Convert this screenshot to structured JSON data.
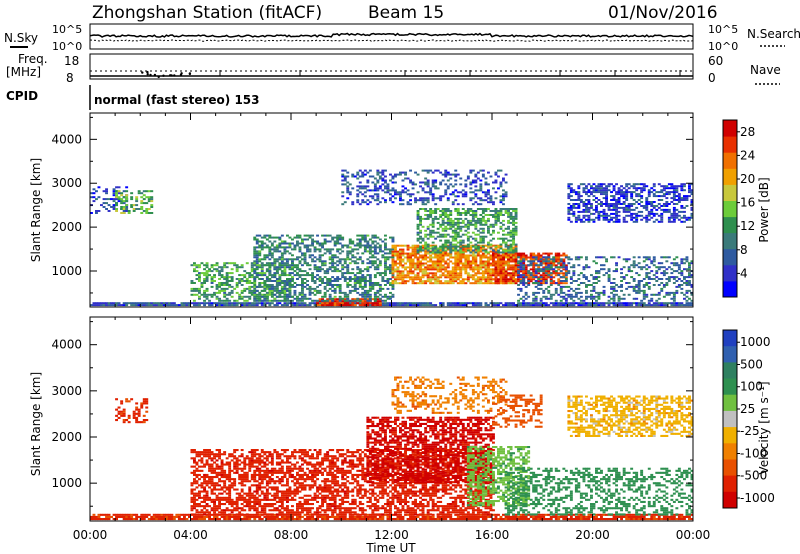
{
  "header": {
    "station": "Zhongshan Station (fitACF)",
    "beam": "Beam 15",
    "date": "01/Nov/2016"
  },
  "aux_panels": {
    "nsky_label": "N.Sky",
    "nsky_ticks": [
      "10^5",
      "10^0"
    ],
    "nsearch_label": "N.Search",
    "nsearch_ticks": [
      "10^5",
      "10^0"
    ],
    "freq_label": "Freq.",
    "freq_unit": "[MHz]",
    "freq_ticks": [
      "18",
      "8"
    ],
    "nave_label": "Nave",
    "nave_ticks": [
      "60",
      "0"
    ],
    "cpid_label": "CPID",
    "cpid_text": "normal (fast stereo) 153"
  },
  "colors": {
    "power": [
      "#0000ff",
      "#3030c8",
      "#2e5aa0",
      "#3a7a7a",
      "#2e8f4e",
      "#6ccc3a",
      "#c8c83c",
      "#f0a000",
      "#f07000",
      "#e83000",
      "#d00000"
    ],
    "velocity": [
      "#2040c0",
      "#3060b0",
      "#2e8060",
      "#2e9050",
      "#70c040",
      "#c0c0c0",
      "#f0b000",
      "#f08000",
      "#e85000",
      "#e02000",
      "#d00000"
    ]
  },
  "chart_data": [
    {
      "type": "heatmap",
      "name": "power-panel",
      "xlabel": "",
      "ylabel": "Slant Range [km]",
      "x_ticks": [
        "00:00",
        "04:00",
        "08:00",
        "12:00",
        "16:00",
        "20:00",
        "00:00"
      ],
      "xlim_hours": [
        0,
        24
      ],
      "y_ticks": [
        1000,
        2000,
        3000,
        4000
      ],
      "ylim": [
        180,
        4600
      ],
      "colorbar_label": "Power [dB]",
      "colorbar_ticks": [
        4,
        8,
        12,
        16,
        20,
        24,
        28
      ],
      "colorbar_range": [
        0,
        30
      ],
      "regions": [
        {
          "t0": 0.0,
          "t1": 1.5,
          "r0": 2300,
          "r1": 2900,
          "v": 5,
          "d": 0.35
        },
        {
          "t0": 0.0,
          "t1": 24.0,
          "r0": 200,
          "r1": 280,
          "v": 6,
          "d": 0.9
        },
        {
          "t0": 9.0,
          "t1": 11.5,
          "r0": 200,
          "r1": 350,
          "v": 27,
          "d": 0.9
        },
        {
          "t0": 4.0,
          "t1": 8.0,
          "r0": 300,
          "r1": 1200,
          "v": 12,
          "d": 0.45
        },
        {
          "t0": 6.5,
          "t1": 12.0,
          "r0": 300,
          "r1": 1800,
          "v": 10,
          "d": 0.5
        },
        {
          "t0": 12.0,
          "t1": 17.0,
          "r0": 700,
          "r1": 1600,
          "v": 22,
          "d": 0.75
        },
        {
          "t0": 13.0,
          "t1": 17.0,
          "r0": 1400,
          "r1": 2400,
          "v": 12,
          "d": 0.55
        },
        {
          "t0": 16.0,
          "t1": 19.0,
          "r0": 700,
          "r1": 1400,
          "v": 26,
          "d": 0.7
        },
        {
          "t0": 10.0,
          "t1": 16.5,
          "r0": 2500,
          "r1": 3300,
          "v": 6,
          "d": 0.35
        },
        {
          "t0": 19.0,
          "t1": 24.0,
          "r0": 2100,
          "r1": 3000,
          "v": 5,
          "d": 0.55
        },
        {
          "t0": 17.0,
          "t1": 24.0,
          "r0": 300,
          "r1": 1300,
          "v": 8,
          "d": 0.35
        },
        {
          "t0": 1.0,
          "t1": 2.5,
          "r0": 2300,
          "r1": 2800,
          "v": 14,
          "d": 0.4
        }
      ]
    },
    {
      "type": "heatmap",
      "name": "velocity-panel",
      "xlabel": "Time UT",
      "ylabel": "Slant Range [km]",
      "x_ticks": [
        "00:00",
        "04:00",
        "08:00",
        "12:00",
        "16:00",
        "20:00",
        "00:00"
      ],
      "xlim_hours": [
        0,
        24
      ],
      "y_ticks": [
        1000,
        2000,
        3000,
        4000
      ],
      "ylim": [
        180,
        4600
      ],
      "colorbar_label": "Velocity [m s⁻¹]",
      "colorbar_ticks": [
        "1000",
        "500",
        "100",
        "25",
        "-25",
        "-100",
        "-500",
        "-1000"
      ],
      "regions": [
        {
          "t0": 0.0,
          "t1": 24.0,
          "r0": 200,
          "r1": 300,
          "v": -300,
          "d": 0.85
        },
        {
          "t0": 4.0,
          "t1": 16.0,
          "r0": 300,
          "r1": 1700,
          "v": -400,
          "d": 0.6
        },
        {
          "t0": 11.0,
          "t1": 16.0,
          "r0": 1000,
          "r1": 2400,
          "v": -600,
          "d": 0.65
        },
        {
          "t0": 15.0,
          "t1": 17.5,
          "r0": 500,
          "r1": 1800,
          "v": 80,
          "d": 0.55
        },
        {
          "t0": 16.5,
          "t1": 24.0,
          "r0": 300,
          "r1": 1300,
          "v": 150,
          "d": 0.4
        },
        {
          "t0": 12.0,
          "t1": 16.5,
          "r0": 2500,
          "r1": 3300,
          "v": -80,
          "d": 0.35
        },
        {
          "t0": 19.0,
          "t1": 24.0,
          "r0": 2000,
          "r1": 2900,
          "v": 0,
          "d": 0.55
        },
        {
          "t0": 1.0,
          "t1": 2.3,
          "r0": 2300,
          "r1": 2800,
          "v": -300,
          "d": 0.35
        },
        {
          "t0": 16.0,
          "t1": 18.0,
          "r0": 2200,
          "r1": 2900,
          "v": -150,
          "d": 0.35
        }
      ]
    }
  ]
}
